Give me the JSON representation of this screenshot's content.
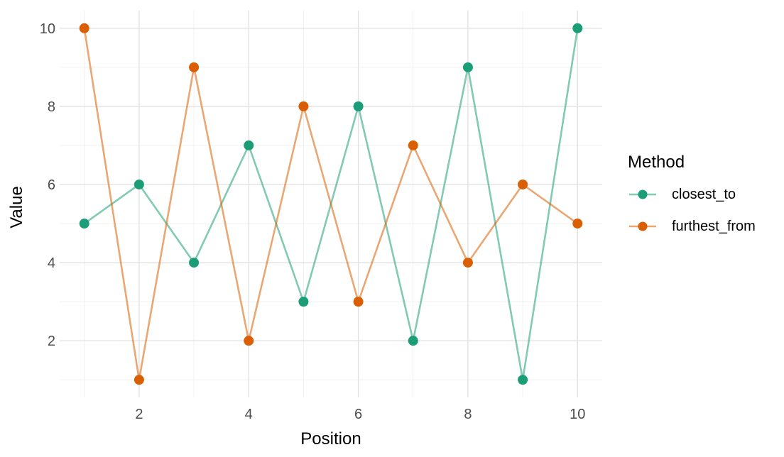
{
  "chart_data": {
    "type": "line",
    "xlabel": "Position",
    "ylabel": "Value",
    "legend_title": "Method",
    "legend_position": "right",
    "x": [
      1,
      2,
      3,
      4,
      5,
      6,
      7,
      8,
      9,
      10
    ],
    "series": [
      {
        "name": "closest_to",
        "color": "#1b9e77",
        "values": [
          5,
          6,
          4,
          7,
          3,
          8,
          2,
          9,
          1,
          10
        ]
      },
      {
        "name": "furthest_from",
        "color": "#d95f02",
        "values": [
          10,
          1,
          9,
          2,
          8,
          3,
          7,
          4,
          6,
          5
        ]
      }
    ],
    "xlim": [
      0.55,
      10.45
    ],
    "ylim": [
      0.55,
      10.45
    ],
    "x_major_ticks": [
      2,
      4,
      6,
      8,
      10
    ],
    "x_minor_ticks": [
      1,
      3,
      5,
      7,
      9
    ],
    "y_major_ticks": [
      2,
      4,
      6,
      8,
      10
    ],
    "y_minor_ticks": [
      1,
      3,
      5,
      7,
      9
    ],
    "grid": true,
    "style": {
      "background": "#ffffff",
      "major_grid_color": "#e2e2e2",
      "minor_grid_color": "#efefef",
      "tick_label_color": "#4d4d4d",
      "axis_title_color": "#000000",
      "line_opacity": 0.55,
      "line_width": 2.6,
      "point_radius": 7
    }
  }
}
